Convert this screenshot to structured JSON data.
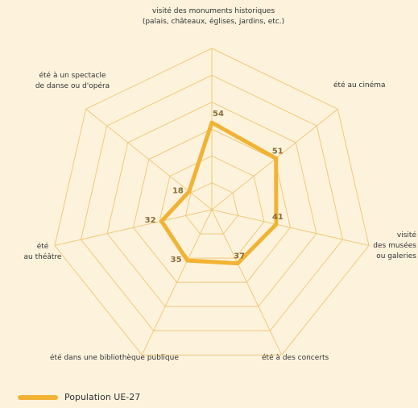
{
  "chart_data": {
    "type": "radar",
    "axes": [
      "visité des monuments historiques\n(palais, châteaux, églises, jardins, etc.)",
      "été au cinéma",
      "visité\ndes musées\nou galeries",
      "été à des concerts",
      "été dans une bibliothèque publique",
      "été\nau théâtre",
      "été à un spectacle\nde danse ou d'opéra"
    ],
    "series": [
      {
        "name": "Population UE-27",
        "values": [
          54,
          51,
          41,
          37,
          35,
          32,
          18
        ]
      }
    ],
    "value_labels": [
      "54",
      "51",
      "41",
      "37",
      "35",
      "32",
      "18"
    ],
    "rlim": [
      0,
      100
    ],
    "rings": 6,
    "grid": true,
    "legend": "bottom-left",
    "colors": {
      "series": "#f2b233",
      "grid": "#f0c878",
      "value_label": "#8a6d36"
    }
  }
}
